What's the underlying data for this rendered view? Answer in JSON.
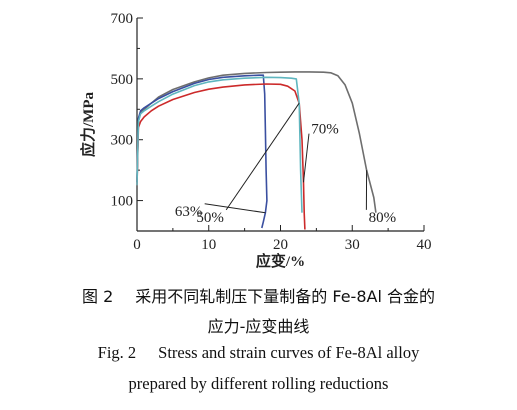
{
  "chart_data": {
    "type": "line",
    "xlabel": "应变/%",
    "ylabel": "应力/MPa",
    "xlim": [
      0,
      40
    ],
    "ylim": [
      0,
      700
    ],
    "xticks": [
      0,
      10,
      20,
      30,
      40
    ],
    "yticks": [
      100,
      300,
      500,
      700
    ],
    "grid": false,
    "series": [
      {
        "name": "80%",
        "color": "#6e6e6e",
        "x": [
          0,
          0.2,
          0.5,
          1,
          2,
          3,
          5,
          8,
          10,
          12,
          15,
          18,
          20,
          22,
          24,
          26,
          27,
          28,
          29,
          30,
          31,
          32,
          33,
          33.3
        ],
        "y": [
          160,
          360,
          390,
          400,
          420,
          440,
          465,
          490,
          503,
          512,
          518,
          521,
          522,
          523,
          523,
          522,
          520,
          510,
          480,
          420,
          320,
          200,
          110,
          60
        ]
      },
      {
        "name": "63%",
        "color": "#3a4fa0",
        "x": [
          0,
          0.2,
          0.5,
          1,
          2,
          3,
          5,
          8,
          10,
          12,
          15,
          17,
          17.6,
          17.8,
          17.9,
          18.0,
          18.1,
          17.9,
          17.6,
          17.4
        ],
        "y": [
          160,
          370,
          395,
          405,
          420,
          435,
          458,
          485,
          498,
          505,
          510,
          512,
          512,
          450,
          330,
          200,
          100,
          60,
          30,
          10
        ]
      },
      {
        "name": "70%",
        "color": "#cc2a2a",
        "x": [
          0,
          0.2,
          0.5,
          1,
          2,
          3,
          5,
          8,
          10,
          12,
          15,
          18,
          20,
          21,
          22,
          22.6,
          23.0,
          23.2,
          23.3,
          23.4
        ],
        "y": [
          150,
          340,
          360,
          375,
          395,
          410,
          432,
          455,
          466,
          473,
          480,
          483,
          482,
          476,
          460,
          420,
          300,
          160,
          60,
          5
        ]
      },
      {
        "name": "50%",
        "color": "#5fb6bf",
        "x": [
          0,
          0.2,
          0.5,
          1,
          2,
          3,
          5,
          8,
          10,
          12,
          15,
          18,
          20,
          21.5,
          22.2,
          22.6,
          22.8,
          23.0
        ],
        "y": [
          150,
          360,
          385,
          395,
          410,
          425,
          450,
          478,
          490,
          497,
          502,
          505,
          504,
          502,
          500,
          420,
          200,
          60
        ]
      }
    ],
    "annotations": [
      {
        "text": "63%",
        "x": 7.2,
        "y": 50,
        "target": "63%"
      },
      {
        "text": "50%",
        "x": 10.2,
        "y": 30,
        "target": "50%"
      },
      {
        "text": "70%",
        "x": 26.2,
        "y": 320,
        "target": "70%"
      },
      {
        "text": "80%",
        "x": 34.2,
        "y": 30,
        "target": "80%"
      }
    ]
  },
  "caption": {
    "cn_number": "图 2",
    "cn_title_line1": "采用不同轧制压下量制备的 Fe-8Al 合金的",
    "cn_title_line2": "应力-应变曲线",
    "en_number": "Fig. 2",
    "en_title_line1": "Stress and strain curves of Fe-8Al alloy",
    "en_title_line2": "prepared by different rolling reductions"
  }
}
